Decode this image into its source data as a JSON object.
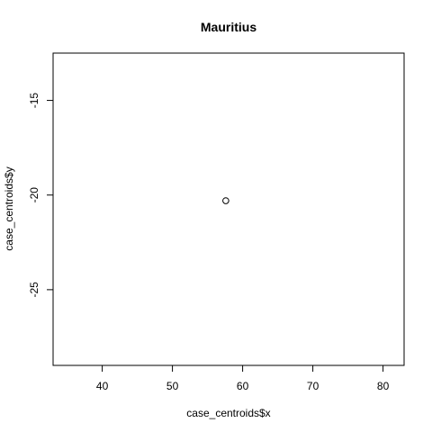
{
  "chart_data": {
    "type": "scatter",
    "title": "Mauritius",
    "xlabel": "case_centroids$x",
    "ylabel": "case_centroids$y",
    "xlim": [
      33,
      83
    ],
    "ylim": [
      -29,
      -12.5
    ],
    "xticks": [
      40,
      50,
      60,
      70,
      80
    ],
    "yticks": [
      -15,
      -20,
      -25
    ],
    "xtick_labels": [
      "40",
      "50",
      "60",
      "70",
      "80"
    ],
    "ytick_labels": [
      "-15",
      "-20",
      "-25"
    ],
    "grid": false,
    "points": [
      {
        "x": 57.6,
        "y": -20.3
      }
    ]
  }
}
